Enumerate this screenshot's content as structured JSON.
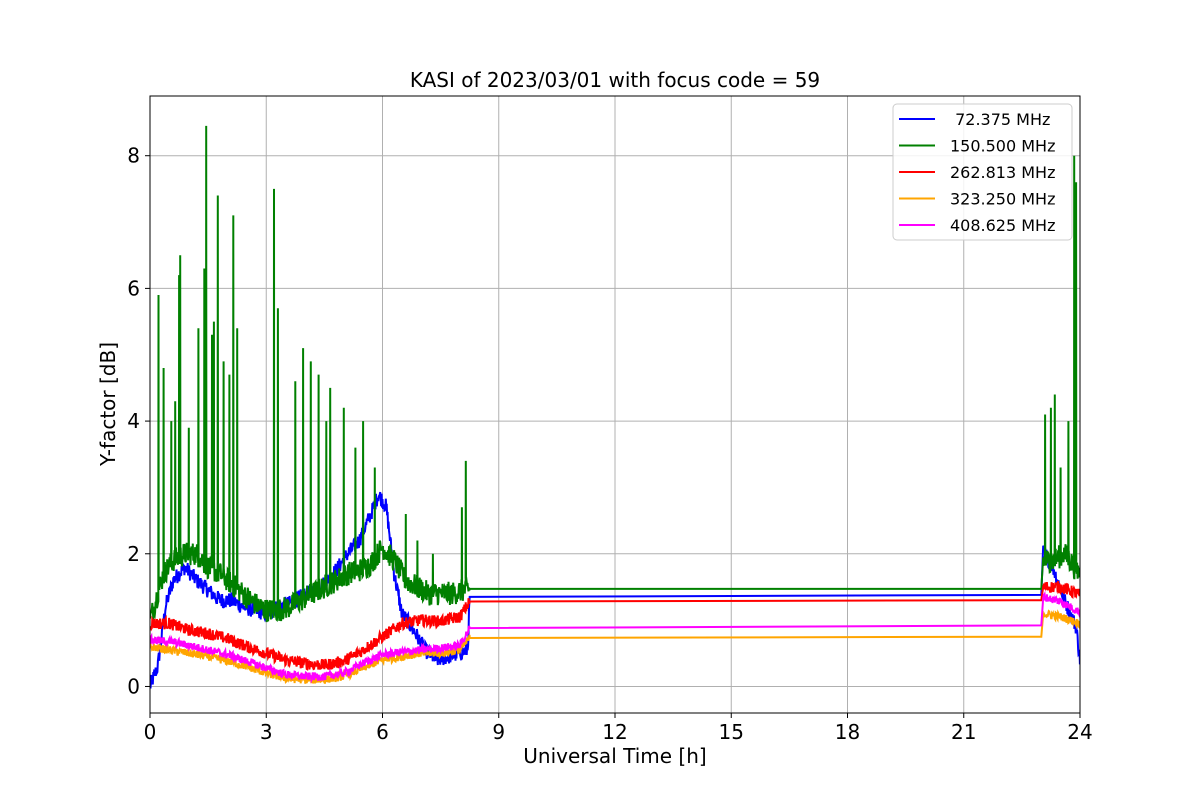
{
  "chart_data": {
    "type": "line",
    "title": "KASI of 2023/03/01 with focus code = 59",
    "xlabel": "Universal Time [h]",
    "ylabel": "Y-factor [dB]",
    "xlim": [
      0,
      24
    ],
    "ylim": [
      -0.4,
      8.9
    ],
    "xticks": [
      0,
      3,
      6,
      9,
      12,
      15,
      18,
      21,
      24
    ],
    "yticks": [
      0,
      2,
      4,
      6,
      8
    ],
    "grid": true,
    "legend_position": "top-right",
    "series": [
      {
        "name": " 72.375 MHz",
        "color": "#0000ff",
        "noise": 0.12,
        "x": [
          0,
          0.2,
          0.4,
          0.6,
          0.9,
          1.2,
          1.5,
          1.8,
          2.1,
          2.4,
          2.7,
          3.0,
          3.3,
          3.6,
          3.9,
          4.2,
          4.5,
          4.8,
          5.1,
          5.4,
          5.7,
          5.9,
          6.1,
          6.3,
          6.5,
          6.8,
          7.1,
          7.4,
          7.7,
          8.0,
          8.2,
          8.25,
          23.0,
          23.05,
          23.3,
          23.6,
          23.9,
          24.0
        ],
        "y": [
          0.0,
          0.3,
          1.2,
          1.6,
          1.8,
          1.6,
          1.45,
          1.3,
          1.3,
          1.2,
          1.15,
          1.1,
          1.2,
          1.25,
          1.35,
          1.45,
          1.55,
          1.75,
          2.0,
          2.2,
          2.6,
          2.9,
          2.7,
          1.7,
          1.1,
          0.85,
          0.55,
          0.4,
          0.45,
          0.5,
          0.55,
          1.35,
          1.38,
          2.05,
          1.8,
          1.3,
          0.9,
          0.4
        ],
        "spikes": []
      },
      {
        "name": "150.500 MHz",
        "color": "#008000",
        "noise": 0.18,
        "x": [
          0,
          0.15,
          0.35,
          0.6,
          0.9,
          1.2,
          1.5,
          1.8,
          2.1,
          2.4,
          2.7,
          3.0,
          3.3,
          3.6,
          3.9,
          4.2,
          4.5,
          4.8,
          5.1,
          5.4,
          5.7,
          6.0,
          6.3,
          6.6,
          6.9,
          7.2,
          7.5,
          7.8,
          8.1,
          8.25,
          23.0,
          23.05,
          23.3,
          23.6,
          23.8,
          24.0
        ],
        "y": [
          1.0,
          1.3,
          1.7,
          1.9,
          2.0,
          2.0,
          1.8,
          1.7,
          1.55,
          1.4,
          1.25,
          1.15,
          1.15,
          1.2,
          1.3,
          1.4,
          1.5,
          1.6,
          1.7,
          1.75,
          1.85,
          2.1,
          1.9,
          1.6,
          1.5,
          1.4,
          1.4,
          1.4,
          1.45,
          1.47,
          1.47,
          1.9,
          1.9,
          2.0,
          1.85,
          1.7
        ],
        "spikes": [
          [
            0.22,
            5.9
          ],
          [
            0.35,
            4.8
          ],
          [
            0.55,
            4.0
          ],
          [
            0.65,
            4.3
          ],
          [
            0.75,
            6.2
          ],
          [
            0.78,
            6.5
          ],
          [
            1.0,
            3.9
          ],
          [
            1.25,
            5.4
          ],
          [
            1.4,
            6.3
          ],
          [
            1.45,
            8.45
          ],
          [
            1.6,
            5.3
          ],
          [
            1.65,
            5.5
          ],
          [
            1.75,
            7.4
          ],
          [
            1.9,
            4.9
          ],
          [
            2.05,
            4.7
          ],
          [
            2.15,
            7.1
          ],
          [
            2.25,
            5.4
          ],
          [
            3.2,
            7.5
          ],
          [
            3.3,
            5.7
          ],
          [
            3.75,
            4.6
          ],
          [
            3.95,
            5.1
          ],
          [
            4.15,
            4.9
          ],
          [
            4.35,
            4.7
          ],
          [
            4.55,
            4.0
          ],
          [
            4.65,
            4.5
          ],
          [
            5.0,
            4.2
          ],
          [
            5.3,
            3.6
          ],
          [
            5.5,
            4.0
          ],
          [
            5.8,
            3.3
          ],
          [
            6.6,
            2.6
          ],
          [
            6.9,
            2.2
          ],
          [
            7.3,
            2.0
          ],
          [
            8.05,
            2.7
          ],
          [
            8.15,
            3.4
          ],
          [
            23.1,
            4.1
          ],
          [
            23.25,
            4.2
          ],
          [
            23.35,
            4.4
          ],
          [
            23.5,
            3.3
          ],
          [
            23.7,
            4.0
          ],
          [
            23.85,
            8.0
          ],
          [
            23.9,
            7.6
          ],
          [
            24.0,
            4.8
          ]
        ]
      },
      {
        "name": "262.813 MHz",
        "color": "#ff0000",
        "noise": 0.09,
        "x": [
          0,
          0.5,
          1.0,
          1.5,
          2.0,
          2.5,
          3.0,
          3.5,
          4.0,
          4.5,
          5.0,
          5.5,
          6.0,
          6.5,
          7.0,
          7.5,
          8.0,
          8.25,
          23.0,
          23.05,
          23.5,
          24.0
        ],
        "y": [
          0.95,
          0.95,
          0.85,
          0.8,
          0.72,
          0.6,
          0.5,
          0.4,
          0.35,
          0.32,
          0.38,
          0.55,
          0.75,
          0.95,
          1.0,
          0.98,
          1.05,
          1.28,
          1.3,
          1.5,
          1.5,
          1.38
        ],
        "spikes": []
      },
      {
        "name": "323.250 MHz",
        "color": "#ffa500",
        "noise": 0.06,
        "x": [
          0,
          0.5,
          1.0,
          1.5,
          2.0,
          2.5,
          3.0,
          3.5,
          4.0,
          4.5,
          5.0,
          5.5,
          6.0,
          6.5,
          7.0,
          7.5,
          8.0,
          8.25,
          23.0,
          23.05,
          23.5,
          24.0
        ],
        "y": [
          0.6,
          0.55,
          0.5,
          0.45,
          0.38,
          0.3,
          0.2,
          0.12,
          0.1,
          0.1,
          0.15,
          0.28,
          0.4,
          0.45,
          0.5,
          0.5,
          0.55,
          0.73,
          0.75,
          1.1,
          1.05,
          0.95
        ],
        "spikes": []
      },
      {
        "name": "408.625 MHz",
        "color": "#ff00ff",
        "noise": 0.06,
        "x": [
          0,
          0.5,
          1.0,
          1.5,
          2.0,
          2.5,
          3.0,
          3.5,
          4.0,
          4.5,
          5.0,
          5.5,
          6.0,
          6.5,
          7.0,
          7.5,
          8.0,
          8.25,
          23.0,
          23.05,
          23.5,
          24.0
        ],
        "y": [
          0.7,
          0.68,
          0.62,
          0.55,
          0.48,
          0.38,
          0.28,
          0.18,
          0.15,
          0.15,
          0.2,
          0.35,
          0.48,
          0.52,
          0.55,
          0.58,
          0.62,
          0.88,
          0.92,
          1.35,
          1.28,
          1.12
        ],
        "spikes": []
      }
    ]
  }
}
